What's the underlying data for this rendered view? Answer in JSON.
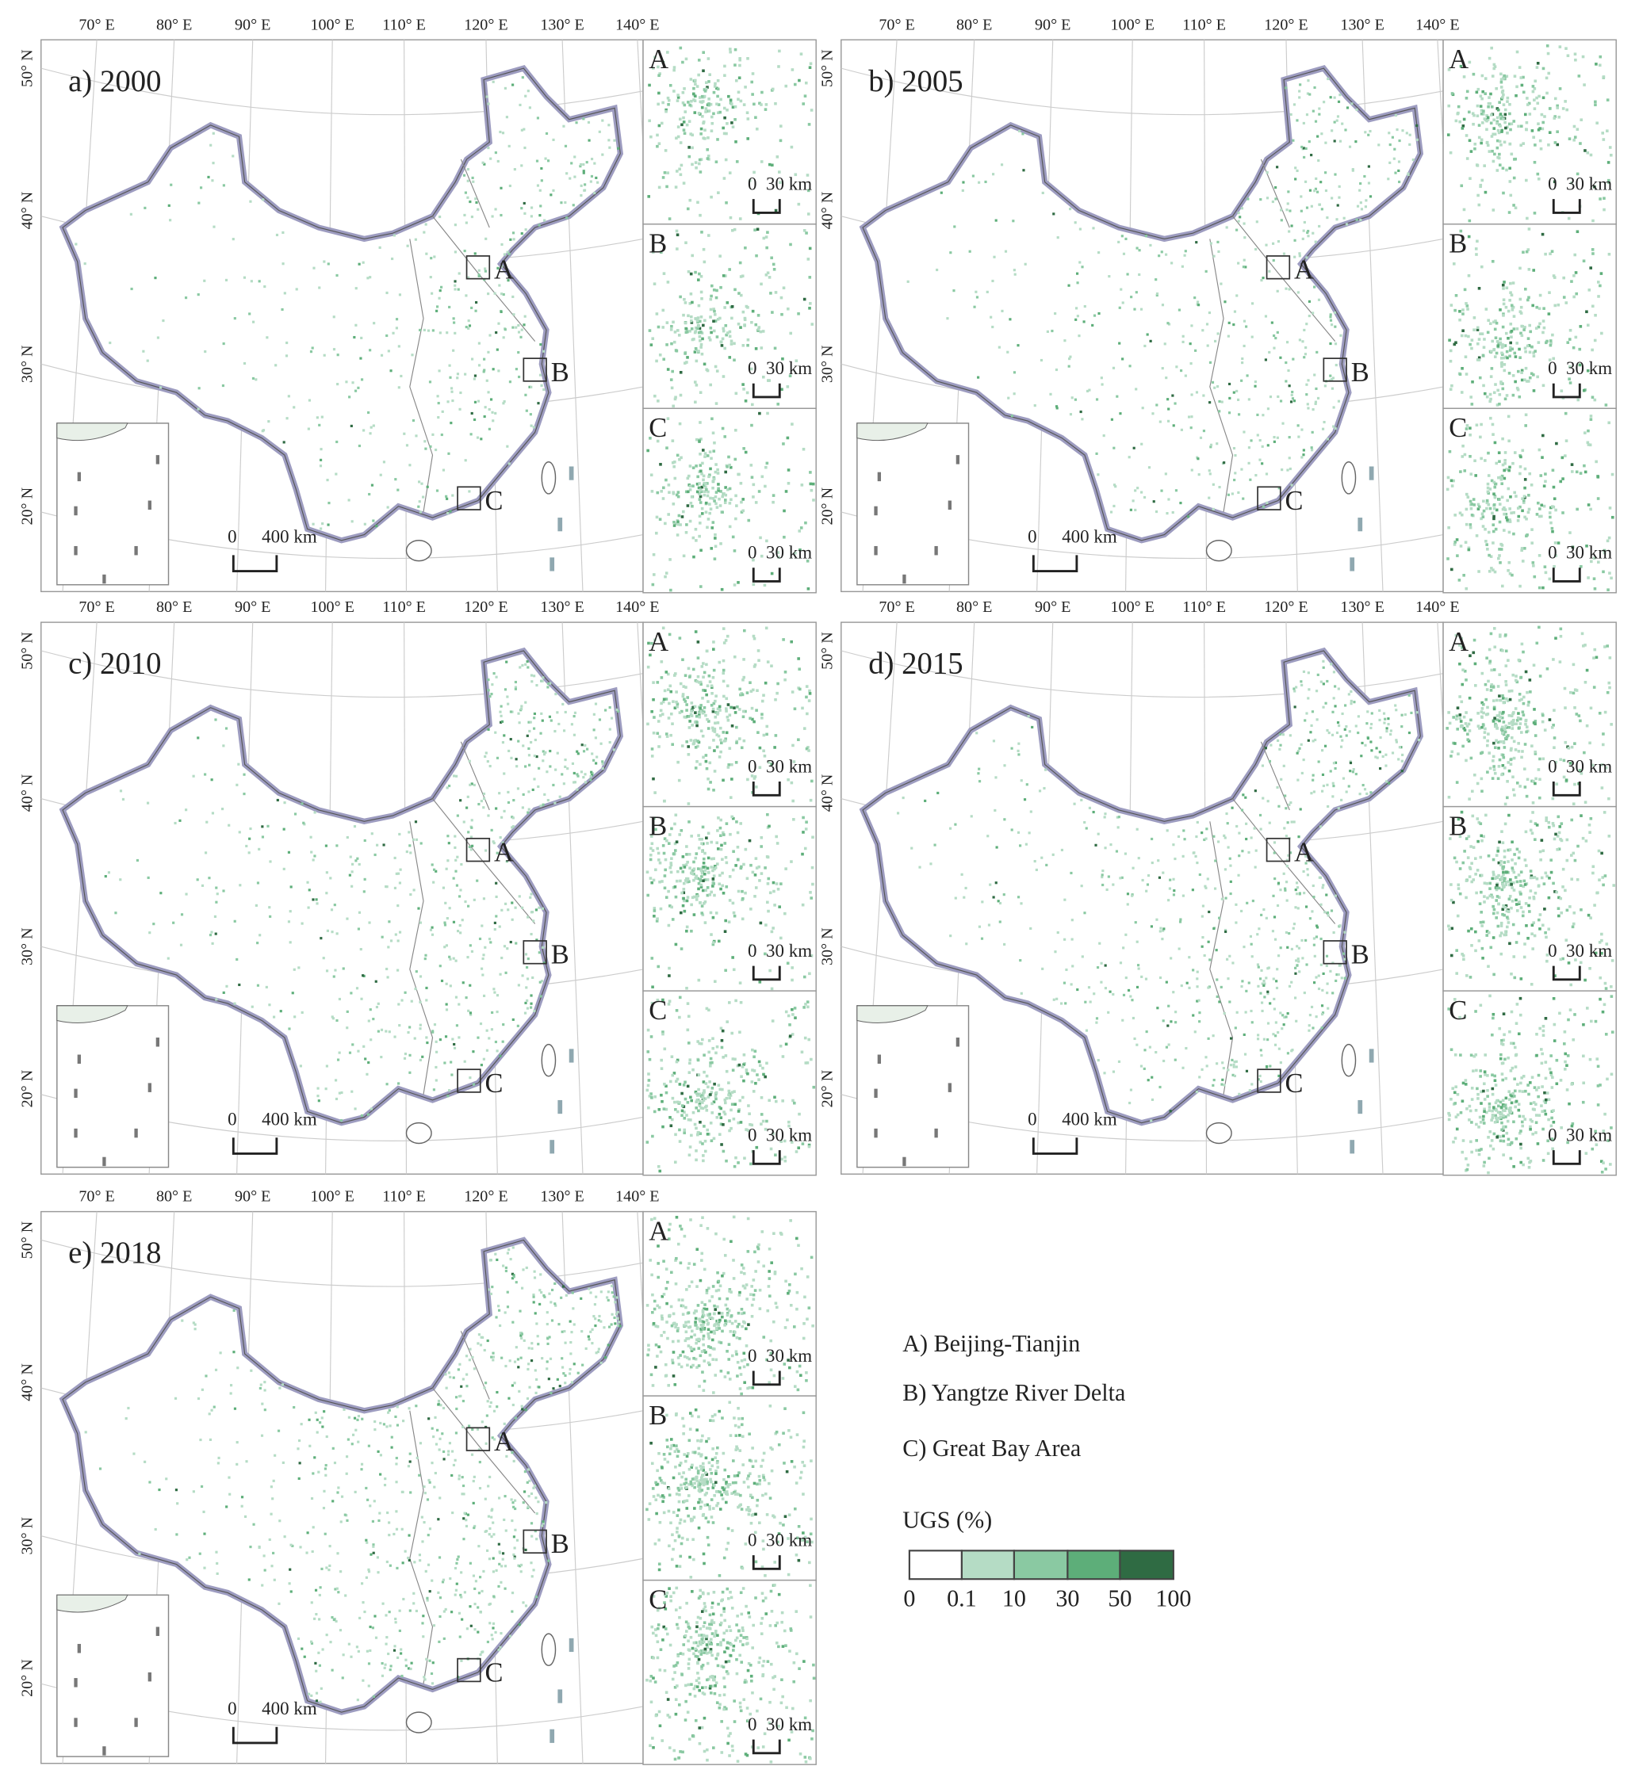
{
  "panels": [
    {
      "title": "a) 2000"
    },
    {
      "title": "b) 2005"
    },
    {
      "title": "c) 2010"
    },
    {
      "title": "d) 2015"
    },
    {
      "title": "e) 2018"
    }
  ],
  "longitude_labels": [
    "70° E",
    "80° E",
    "90° E",
    "100° E",
    "110° E",
    "120° E",
    "130° E",
    "140° E"
  ],
  "latitude_labels": [
    "50° N",
    "40° N",
    "30° N",
    "20° N"
  ],
  "region_markers": [
    "A",
    "B",
    "C"
  ],
  "scale_bar": {
    "zero": "0",
    "main": "400 km",
    "inset": "30 km"
  },
  "legend": {
    "regions": [
      "A) Beijing-Tianjin",
      "B) Yangtze River Delta",
      "C) Great Bay Area"
    ],
    "title": "UGS  (%)",
    "breaks": [
      0,
      0.1,
      10,
      30,
      50,
      100
    ],
    "colors": [
      "#ffffff",
      "#b5dcc5",
      "#8ac9a2",
      "#5dae79",
      "#2f6b43"
    ]
  }
}
